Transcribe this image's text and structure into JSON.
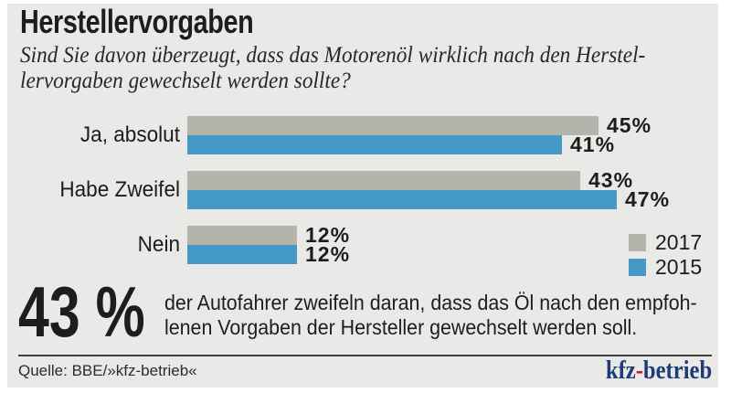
{
  "page": {
    "title": "Herstellervorgaben",
    "subtitle": "Sind Sie davon überzeugt, dass das Motorenöl wirklich nach den Herstel-\nlervorgaben gewechselt werden sollte?"
  },
  "chart_data": {
    "type": "bar",
    "orientation": "horizontal",
    "title": "Herstellervorgaben",
    "question": "Sind Sie davon überzeugt, dass das Motorenöl wirklich nach den Herstellervorgaben gewechselt werden sollte?",
    "categories": [
      "Ja, absolut",
      "Habe Zweifel",
      "Nein"
    ],
    "series": [
      {
        "name": "2017",
        "color": "#b4b4ad",
        "values": [
          45,
          43,
          12
        ]
      },
      {
        "name": "2015",
        "color": "#4498c5",
        "values": [
          41,
          47,
          12
        ]
      }
    ],
    "value_labels": [
      [
        "45%",
        "41%"
      ],
      [
        "43%",
        "47%"
      ],
      [
        "12%",
        "12%"
      ]
    ],
    "unit": "%",
    "xlim": [
      0,
      50
    ],
    "grid": false,
    "legend_position": "right"
  },
  "callout": {
    "value": "43 %",
    "text": "der Autofahrer zweifeln daran, dass das Öl nach den empfoh-\nlenen Vorgaben der Hersteller gewechselt werden soll."
  },
  "footer": {
    "source": "Quelle: BBE/»kfz-betrieb«",
    "logo": {
      "prefix": "kfz",
      "hyphen": "-",
      "suffix": "betrieb"
    }
  },
  "colors": {
    "panel_background": "#e9e9e7",
    "bar_2017": "#b4b4ad",
    "bar_2015": "#4498c5",
    "text": "#1d1d1b",
    "rule": "#3f3f3d",
    "logo_blue": "#1e3c78",
    "logo_red": "#d2101f"
  }
}
